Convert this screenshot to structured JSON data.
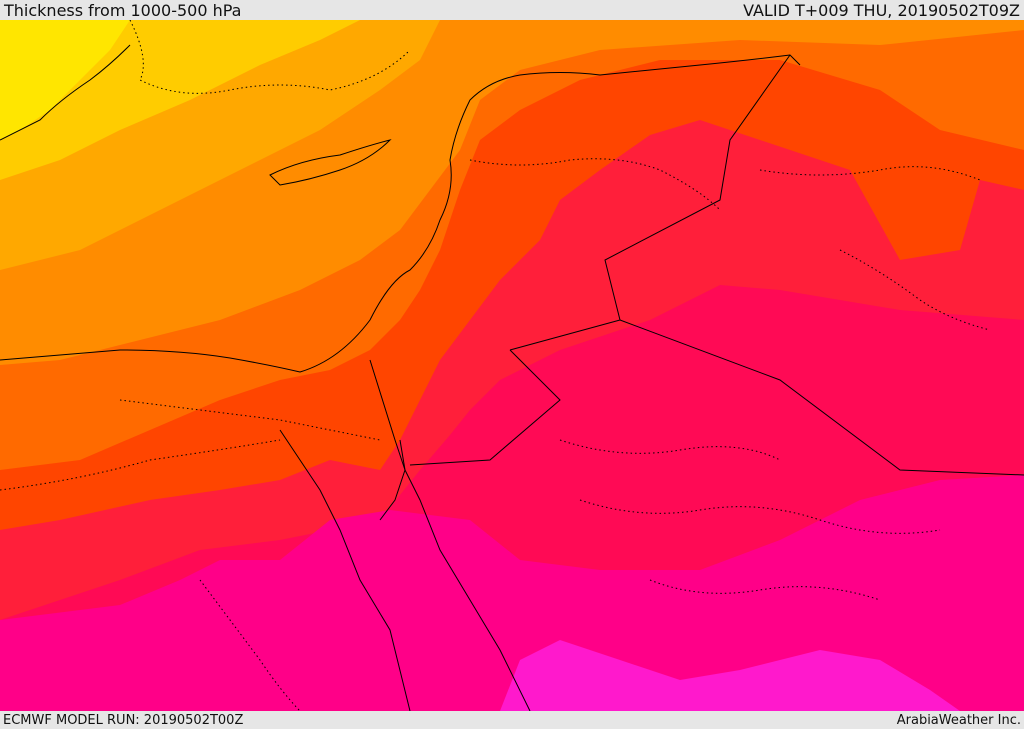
{
  "header": {
    "title": "Thickness from 1000-500 hPa",
    "valid": "VALID T+009 THU, 20190502T09Z"
  },
  "footer": {
    "model_run": "ECMWF MODEL RUN: 20190502T00Z",
    "credit": "ArabiaWeather Inc."
  },
  "palette": {
    "yellow": "#ffe600",
    "gold": "#ffcc00",
    "light_orange": "#ffa800",
    "orange": "#ff8c00",
    "dark_orange": "#ff6a00",
    "red_orange": "#ff4500",
    "red": "#ff1f3a",
    "crimson": "#ff0a55",
    "magenta": "#ff0088",
    "pink": "#ff19cc",
    "border": "#000000"
  }
}
